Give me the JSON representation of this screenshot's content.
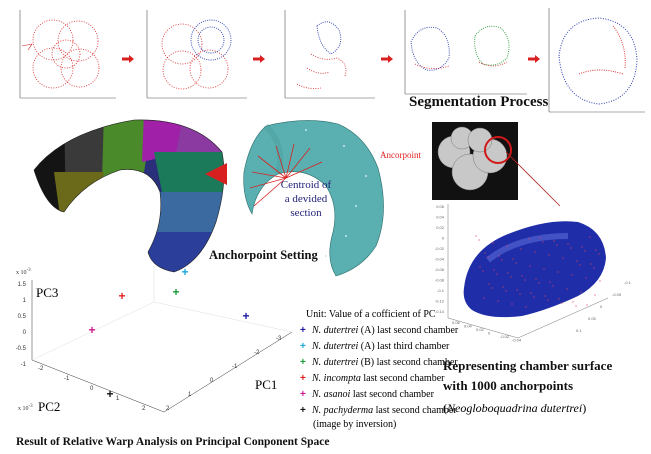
{
  "segmentation": {
    "title": "Segmentation Process"
  },
  "anchorpoint": {
    "title": "Anchorpoint Setting",
    "ancorpoint_label": "Ancorpoint",
    "centroid_label": "Centroid of\na devided\nsection"
  },
  "surface": {
    "title_line1": "Representing chamber surface",
    "title_line2": "with 1000 anchorpoints",
    "species": "(Neogloboquadrina dutertrei)",
    "species_italic": "Neogloboquadrina dutertrei",
    "yaxis_ticks": [
      "0.06",
      "0.04",
      "0.02",
      "0",
      "-0.02",
      "-0.04",
      "-0.06",
      "-0.08",
      "-0.1",
      "-0.12",
      "-0.14"
    ],
    "right_ticks": [
      "-0.1",
      "-0.05",
      "0",
      "0.05",
      "0.1"
    ],
    "bottom_ticks": [
      "0.06",
      "0.04",
      "0.02",
      "0",
      "-0.02",
      "-0.04"
    ]
  },
  "pca": {
    "title": "Result of Relative Warp Analysis on Principal Conponent Space",
    "unit_label": "Unit:  Value of a cofficient of  PC",
    "exponent": "x 10",
    "exp_sup": "-3",
    "pc1": "PC1",
    "pc2": "PC2",
    "pc3": "PC3",
    "z_ticks": [
      "1.5",
      "1",
      "0.5",
      "0",
      "-0.5",
      "-1"
    ],
    "pc1_ticks": [
      "-3",
      "-2",
      "-1",
      "0",
      "1",
      "2"
    ],
    "pc2_ticks": [
      "-2",
      "-1",
      "0",
      "1",
      "2"
    ],
    "legend": [
      {
        "marker": "+",
        "color": "#1a1aa8",
        "species": "N. dutertrei",
        "rest": " (A) last second chamber"
      },
      {
        "marker": "+",
        "color": "#1aa8d8",
        "species": "N. dutertrei",
        "rest": " (A)  last third chamber"
      },
      {
        "marker": "+",
        "color": "#1a9a3a",
        "species": "N. dutertrei",
        "rest": " (B) last second chamber"
      },
      {
        "marker": "+",
        "color": "#e02020",
        "species": "N. incompta",
        "rest": " last second chamber"
      },
      {
        "marker": "+",
        "color": "#d01890",
        "species": "N. asanoi",
        "rest": " last second chamber"
      },
      {
        "marker": "+",
        "color": "#111111",
        "species": "N. pachyderma",
        "rest": " last second chamber"
      }
    ],
    "legend_note": "(image by inversion)"
  }
}
